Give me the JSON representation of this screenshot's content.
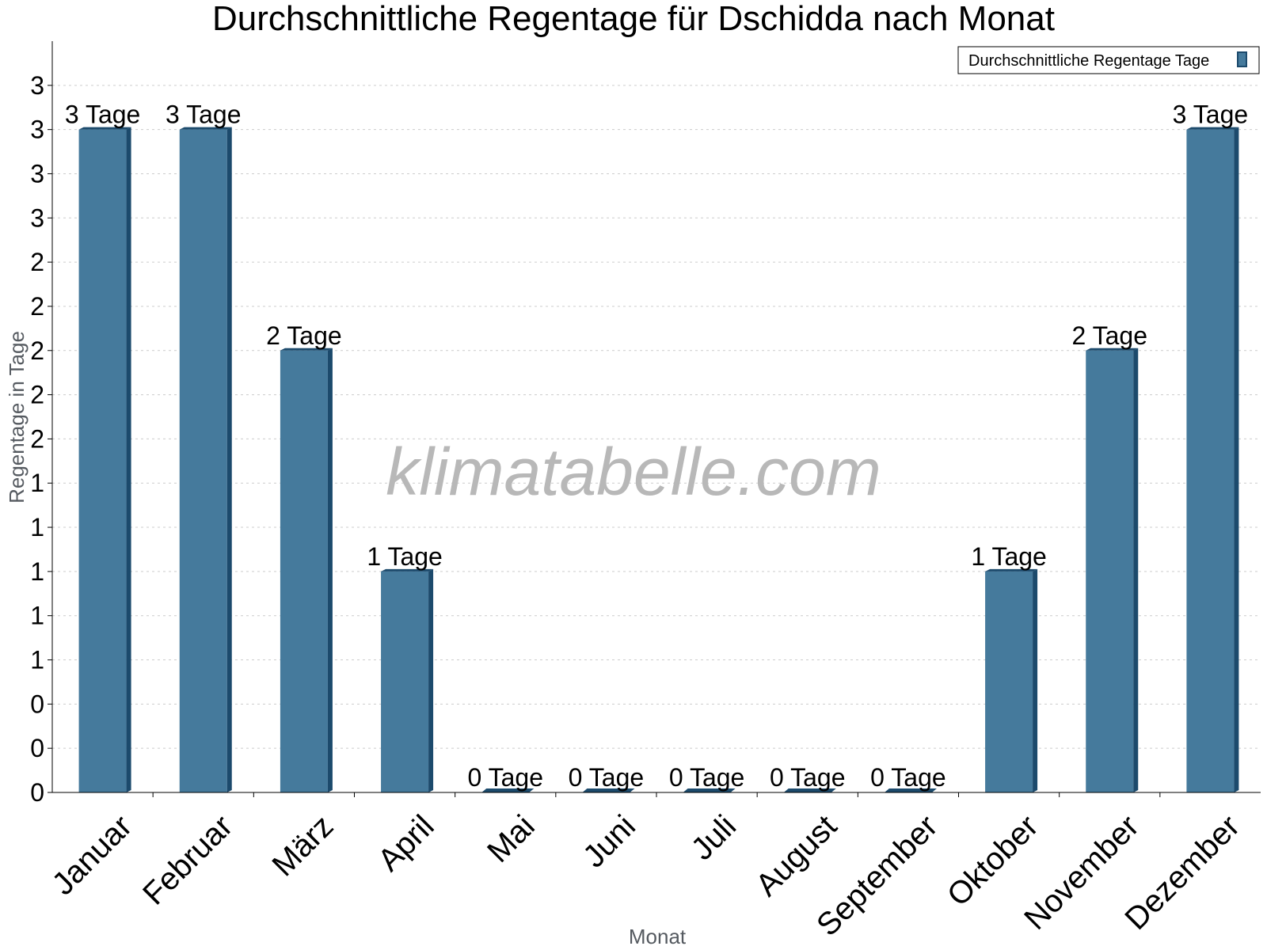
{
  "chart_data": {
    "type": "bar",
    "title": "Durchschnittliche Regentage für Dschidda nach Monat",
    "xlabel": "Monat",
    "ylabel": "Regentage in Tage",
    "categories": [
      "Januar",
      "Februar",
      "März",
      "April",
      "Mai",
      "Juni",
      "Juli",
      "August",
      "September",
      "Oktober",
      "November",
      "Dezember"
    ],
    "series": [
      {
        "name": "Durchschnittliche Regentage Tage",
        "values": [
          3,
          3,
          2,
          1,
          0,
          0,
          0,
          0,
          0,
          1,
          2,
          3
        ],
        "labels": [
          "3 Tage",
          "3 Tage",
          "2 Tage",
          "1 Tage",
          "0 Tage",
          "0 Tage",
          "0 Tage",
          "0 Tage",
          "0 Tage",
          "1 Tage",
          "2 Tage",
          "3 Tage"
        ],
        "color": "#457a9c"
      }
    ],
    "ylim": [
      0,
      3.4
    ],
    "y_tick_values": [
      0,
      0.2,
      0.4,
      0.6,
      0.8,
      1.0,
      1.2,
      1.4,
      1.6,
      1.8,
      2.0,
      2.2,
      2.4,
      2.6,
      2.8,
      3.0,
      3.2
    ],
    "y_tick_labels": [
      "0",
      "0",
      "0",
      "1",
      "1",
      "1",
      "1",
      "1",
      "2",
      "2",
      "2",
      "2",
      "2",
      "3",
      "3",
      "3",
      "3"
    ],
    "grid": true,
    "legend": "top-right",
    "watermark": "klimatabelle.com",
    "colors": {
      "bar": "#457a9c",
      "bar_side": "#1c4a6c",
      "grid": "#cccccc",
      "axis": "#000000"
    }
  }
}
